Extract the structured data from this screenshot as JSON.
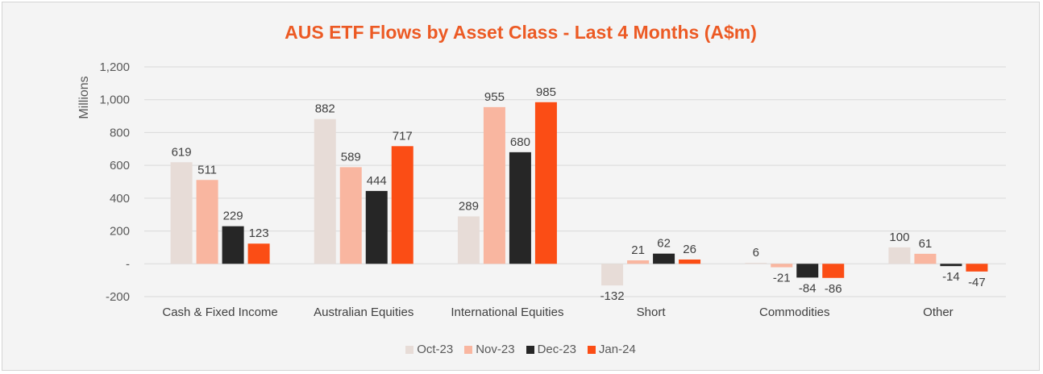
{
  "chart_data": {
    "type": "bar",
    "title": "AUS ETF Flows by Asset Class - Last 4 Months (A$m)",
    "ylabel": "Millions",
    "ylim": [
      -200,
      1200
    ],
    "yticks": [
      -200,
      0,
      200,
      400,
      600,
      800,
      1000,
      1200
    ],
    "ytick_labels": [
      "-200",
      "-",
      "200",
      "400",
      "600",
      "800",
      "1,000",
      "1,200"
    ],
    "grid": true,
    "legend_position": "bottom",
    "categories": [
      "Cash & Fixed Income",
      "Australian Equities",
      "International Equities",
      "Short",
      "Commodities",
      "Other"
    ],
    "series": [
      {
        "name": "Oct-23",
        "color": "#e7dcd7",
        "values": [
          619,
          882,
          289,
          -132,
          6,
          100
        ]
      },
      {
        "name": "Nov-23",
        "color": "#f9b6a0",
        "values": [
          511,
          589,
          955,
          21,
          -21,
          61
        ]
      },
      {
        "name": "Dec-23",
        "color": "#262626",
        "values": [
          229,
          444,
          680,
          62,
          -84,
          -14
        ]
      },
      {
        "name": "Jan-24",
        "color": "#fb4d15",
        "values": [
          123,
          717,
          985,
          26,
          -86,
          -47
        ]
      }
    ]
  }
}
